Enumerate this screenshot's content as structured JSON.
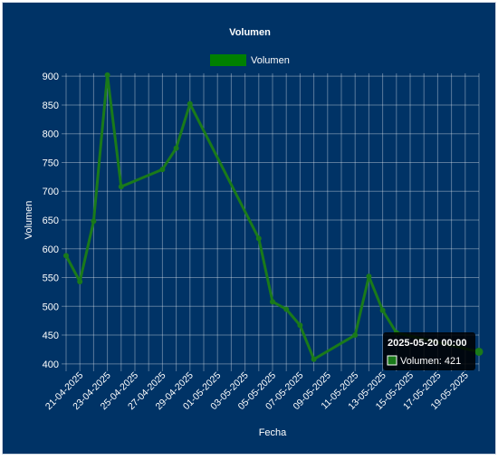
{
  "chart_data": {
    "type": "line",
    "title": "Volumen",
    "xlabel": "Fecha",
    "ylabel": "Volumen",
    "legend_position": "top",
    "grid": true,
    "x_range": [
      "2025-04-20",
      "2025-05-20"
    ],
    "ylim": [
      395,
      905
    ],
    "y_ticks": [
      400,
      450,
      500,
      550,
      600,
      650,
      700,
      750,
      800,
      850,
      900
    ],
    "x_ticks": [
      "21-04-2025",
      "23-04-2025",
      "25-04-2025",
      "27-04-2025",
      "29-04-2025",
      "01-05-2025",
      "03-05-2025",
      "05-05-2025",
      "07-05-2025",
      "09-05-2025",
      "11-05-2025",
      "13-05-2025",
      "15-05-2025",
      "17-05-2025",
      "19-05-2025"
    ],
    "series": [
      {
        "name": "Volumen",
        "color": "#1a7a1a",
        "points": [
          {
            "date": "2025-04-20",
            "value": 588
          },
          {
            "date": "2025-04-21",
            "value": 543
          },
          {
            "date": "2025-04-22",
            "value": 648
          },
          {
            "date": "2025-04-23",
            "value": 902
          },
          {
            "date": "2025-04-24",
            "value": 708
          },
          {
            "date": "2025-04-27",
            "value": 738
          },
          {
            "date": "2025-04-28",
            "value": 775
          },
          {
            "date": "2025-04-29",
            "value": 852
          },
          {
            "date": "2025-05-04",
            "value": 618
          },
          {
            "date": "2025-05-05",
            "value": 508
          },
          {
            "date": "2025-05-06",
            "value": 495
          },
          {
            "date": "2025-05-07",
            "value": 467
          },
          {
            "date": "2025-05-08",
            "value": 408
          },
          {
            "date": "2025-05-11",
            "value": 450
          },
          {
            "date": "2025-05-12",
            "value": 552
          },
          {
            "date": "2025-05-13",
            "value": 493
          },
          {
            "date": "2025-05-14",
            "value": 454
          },
          {
            "date": "2025-05-20",
            "value": 421
          }
        ]
      }
    ]
  },
  "tooltip": {
    "title": "2025-05-20 00:00",
    "label": "Volumen: 421",
    "point_date": "2025-05-20"
  }
}
